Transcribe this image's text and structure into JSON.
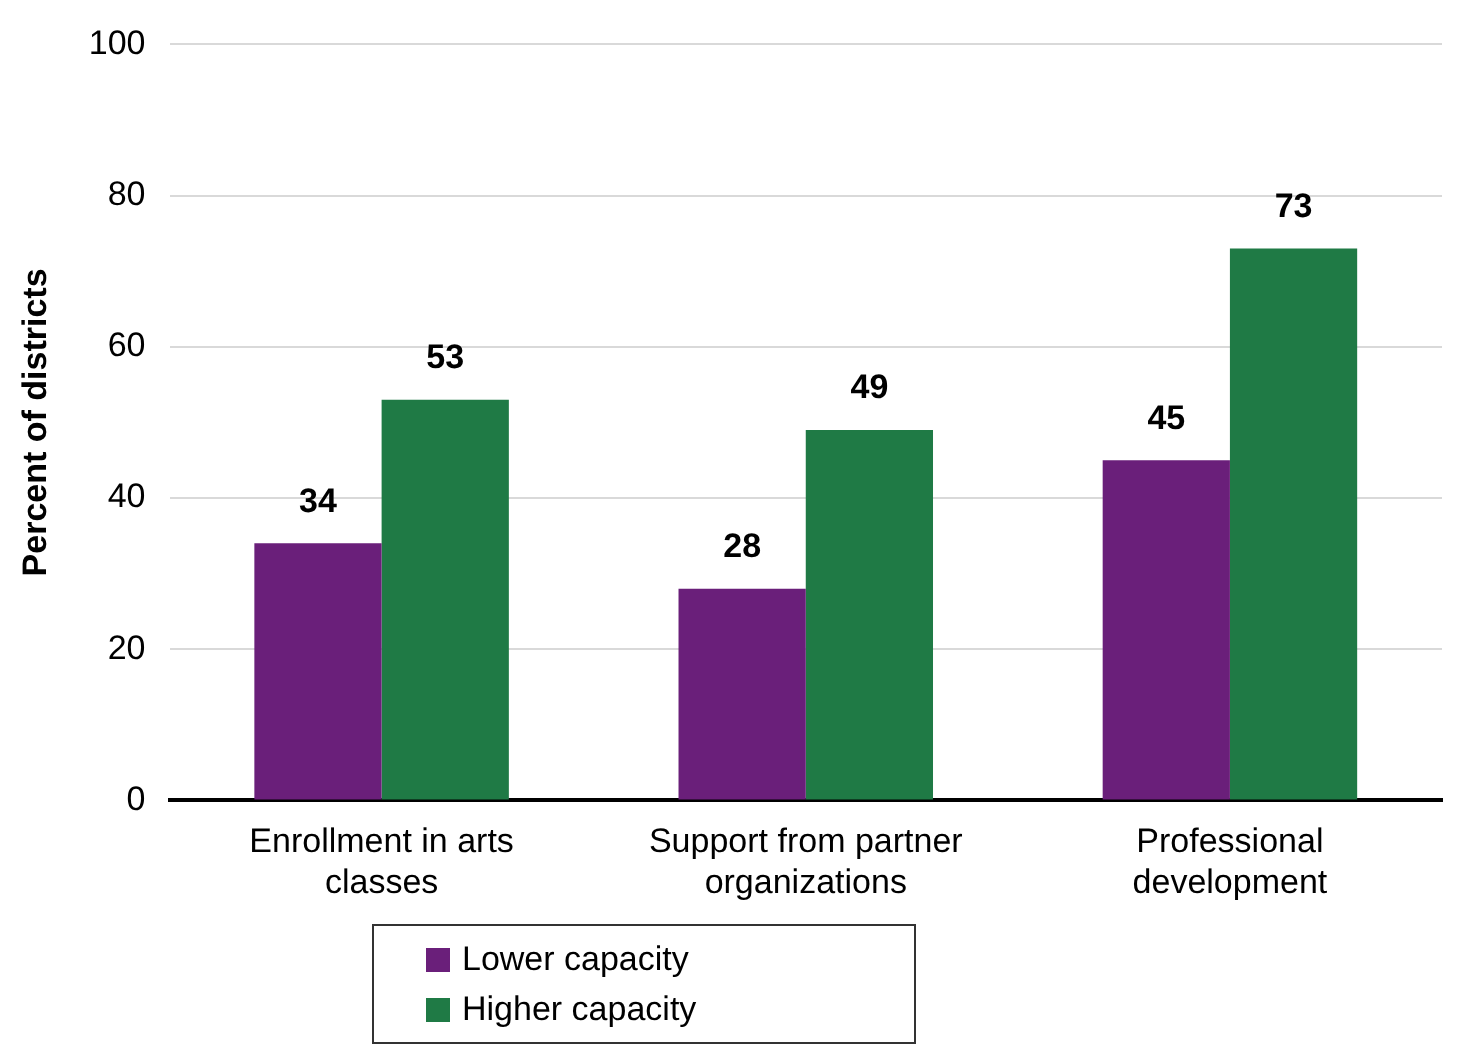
{
  "chart_data": {
    "type": "bar",
    "ylabel": "Percent of districts",
    "categories": [
      "Enrollment in arts classes",
      "Support from partner organizations",
      "Professional development"
    ],
    "series": [
      {
        "name": "Lower capacity",
        "color": "#6a1f7a",
        "values": [
          34,
          28,
          45
        ]
      },
      {
        "name": "Higher capacity",
        "color": "#1f7a45",
        "values": [
          53,
          49,
          73
        ]
      }
    ],
    "ylim": [
      0,
      100
    ],
    "yticks": [
      0,
      20,
      40,
      60,
      80,
      100
    ],
    "grid": "y",
    "legend": "bottom",
    "data_labels": true
  }
}
